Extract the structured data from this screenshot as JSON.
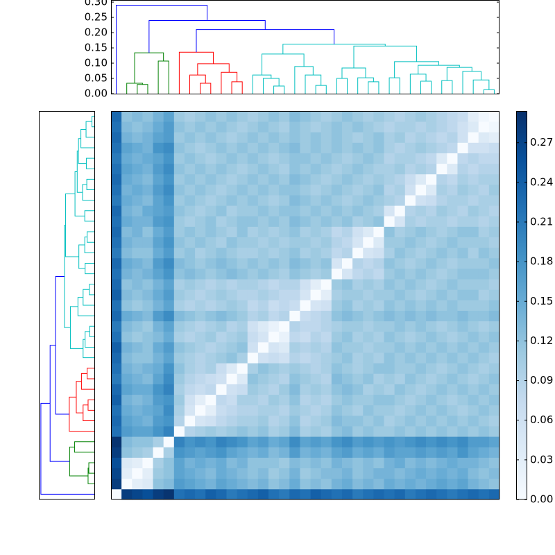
{
  "chart_data": {
    "type": "clustermap",
    "matrix": [
      [
        0
      ],
      [
        0.28,
        0
      ],
      [
        0.27,
        0.03,
        0
      ],
      [
        0.26,
        0.04,
        0.03,
        0
      ],
      [
        0.28,
        0.12,
        0.11,
        0.1,
        0
      ],
      [
        0.29,
        0.13,
        0.12,
        0.12,
        0.1,
        0
      ],
      [
        0.22,
        0.17,
        0.16,
        0.16,
        0.18,
        0.2,
        0
      ],
      [
        0.23,
        0.16,
        0.15,
        0.14,
        0.17,
        0.18,
        0.09,
        0
      ],
      [
        0.22,
        0.15,
        0.14,
        0.15,
        0.16,
        0.19,
        0.1,
        0.05,
        0
      ],
      [
        0.24,
        0.14,
        0.13,
        0.14,
        0.17,
        0.18,
        0.11,
        0.06,
        0.03,
        0
      ],
      [
        0.23,
        0.16,
        0.15,
        0.15,
        0.18,
        0.2,
        0.1,
        0.08,
        0.07,
        0.08,
        0
      ],
      [
        0.21,
        0.15,
        0.14,
        0.13,
        0.16,
        0.19,
        0.11,
        0.09,
        0.08,
        0.07,
        0.06,
        0
      ],
      [
        0.22,
        0.14,
        0.13,
        0.14,
        0.15,
        0.18,
        0.12,
        0.1,
        0.09,
        0.1,
        0.07,
        0.04,
        0
      ],
      [
        0.23,
        0.13,
        0.12,
        0.12,
        0.14,
        0.16,
        0.11,
        0.1,
        0.09,
        0.1,
        0.11,
        0.12,
        0.1,
        0
      ],
      [
        0.24,
        0.14,
        0.13,
        0.12,
        0.15,
        0.17,
        0.12,
        0.11,
        0.1,
        0.09,
        0.1,
        0.11,
        0.12,
        0.06,
        0
      ],
      [
        0.22,
        0.12,
        0.11,
        0.12,
        0.13,
        0.15,
        0.1,
        0.09,
        0.1,
        0.11,
        0.09,
        0.1,
        0.11,
        0.07,
        0.05,
        0
      ],
      [
        0.21,
        0.13,
        0.12,
        0.11,
        0.14,
        0.16,
        0.11,
        0.1,
        0.09,
        0.1,
        0.11,
        0.09,
        0.1,
        0.06,
        0.04,
        0.02,
        0
      ],
      [
        0.23,
        0.15,
        0.14,
        0.13,
        0.17,
        0.19,
        0.13,
        0.12,
        0.11,
        0.12,
        0.13,
        0.12,
        0.11,
        0.09,
        0.1,
        0.08,
        0.09,
        0
      ],
      [
        0.22,
        0.12,
        0.11,
        0.12,
        0.14,
        0.16,
        0.1,
        0.09,
        0.1,
        0.09,
        0.1,
        0.11,
        0.1,
        0.08,
        0.09,
        0.07,
        0.08,
        0.07,
        0
      ],
      [
        0.24,
        0.13,
        0.12,
        0.13,
        0.15,
        0.17,
        0.11,
        0.1,
        0.09,
        0.1,
        0.11,
        0.1,
        0.09,
        0.09,
        0.1,
        0.09,
        0.08,
        0.08,
        0.05,
        0
      ],
      [
        0.23,
        0.12,
        0.13,
        0.12,
        0.14,
        0.16,
        0.1,
        0.11,
        0.1,
        0.09,
        0.1,
        0.09,
        0.1,
        0.1,
        0.09,
        0.08,
        0.09,
        0.09,
        0.06,
        0.03,
        0
      ],
      [
        0.22,
        0.14,
        0.13,
        0.14,
        0.16,
        0.18,
        0.12,
        0.13,
        0.12,
        0.11,
        0.12,
        0.13,
        0.12,
        0.11,
        0.12,
        0.11,
        0.1,
        0.12,
        0.11,
        0.1,
        0.11,
        0
      ],
      [
        0.23,
        0.15,
        0.14,
        0.13,
        0.17,
        0.19,
        0.13,
        0.12,
        0.11,
        0.12,
        0.13,
        0.12,
        0.11,
        0.12,
        0.11,
        0.12,
        0.11,
        0.13,
        0.12,
        0.11,
        0.12,
        0.05,
        0
      ],
      [
        0.21,
        0.13,
        0.12,
        0.12,
        0.15,
        0.17,
        0.11,
        0.12,
        0.1,
        0.11,
        0.12,
        0.11,
        0.1,
        0.1,
        0.11,
        0.1,
        0.11,
        0.12,
        0.1,
        0.11,
        0.1,
        0.08,
        0.09,
        0
      ],
      [
        0.22,
        0.14,
        0.13,
        0.13,
        0.16,
        0.18,
        0.12,
        0.11,
        0.12,
        0.11,
        0.1,
        0.12,
        0.11,
        0.11,
        0.1,
        0.11,
        0.1,
        0.11,
        0.11,
        0.1,
        0.11,
        0.09,
        0.08,
        0.05,
        0
      ],
      [
        0.23,
        0.13,
        0.14,
        0.12,
        0.15,
        0.17,
        0.11,
        0.12,
        0.11,
        0.12,
        0.11,
        0.1,
        0.12,
        0.1,
        0.11,
        0.1,
        0.11,
        0.12,
        0.1,
        0.11,
        0.1,
        0.08,
        0.09,
        0.06,
        0.04,
        0
      ],
      [
        0.22,
        0.15,
        0.14,
        0.14,
        0.17,
        0.18,
        0.11,
        0.1,
        0.11,
        0.12,
        0.1,
        0.11,
        0.12,
        0.12,
        0.11,
        0.12,
        0.11,
        0.13,
        0.12,
        0.11,
        0.12,
        0.11,
        0.12,
        0.1,
        0.11,
        0.12,
        0
      ],
      [
        0.23,
        0.14,
        0.13,
        0.15,
        0.16,
        0.17,
        0.12,
        0.11,
        0.1,
        0.11,
        0.12,
        0.1,
        0.11,
        0.11,
        0.12,
        0.11,
        0.12,
        0.12,
        0.11,
        0.12,
        0.11,
        0.12,
        0.11,
        0.12,
        0.11,
        0.1,
        0.05,
        0
      ],
      [
        0.21,
        0.15,
        0.14,
        0.13,
        0.16,
        0.18,
        0.11,
        0.12,
        0.11,
        0.1,
        0.11,
        0.12,
        0.11,
        0.12,
        0.11,
        0.1,
        0.11,
        0.13,
        0.12,
        0.11,
        0.12,
        0.11,
        0.1,
        0.11,
        0.12,
        0.11,
        0.1,
        0.09,
        0
      ],
      [
        0.22,
        0.14,
        0.15,
        0.14,
        0.17,
        0.19,
        0.12,
        0.11,
        0.12,
        0.11,
        0.1,
        0.11,
        0.12,
        0.11,
        0.12,
        0.11,
        0.12,
        0.12,
        0.11,
        0.1,
        0.11,
        0.12,
        0.11,
        0.1,
        0.11,
        0.12,
        0.09,
        0.1,
        0.06,
        0
      ],
      [
        0.23,
        0.15,
        0.14,
        0.13,
        0.16,
        0.18,
        0.11,
        0.12,
        0.11,
        0.12,
        0.11,
        0.1,
        0.11,
        0.12,
        0.11,
        0.12,
        0.11,
        0.13,
        0.12,
        0.11,
        0.1,
        0.11,
        0.12,
        0.11,
        0.1,
        0.11,
        0.1,
        0.09,
        0.07,
        0.04,
        0
      ],
      [
        0.22,
        0.16,
        0.15,
        0.14,
        0.17,
        0.19,
        0.12,
        0.11,
        0.12,
        0.11,
        0.12,
        0.11,
        0.1,
        0.11,
        0.12,
        0.11,
        0.1,
        0.12,
        0.11,
        0.12,
        0.11,
        0.1,
        0.11,
        0.12,
        0.11,
        0.1,
        0.1,
        0.11,
        0.09,
        0.1,
        0.09,
        0
      ],
      [
        0.21,
        0.15,
        0.14,
        0.15,
        0.16,
        0.18,
        0.11,
        0.12,
        0.11,
        0.1,
        0.11,
        0.12,
        0.11,
        0.12,
        0.11,
        0.1,
        0.11,
        0.12,
        0.12,
        0.11,
        0.12,
        0.11,
        0.1,
        0.11,
        0.12,
        0.11,
        0.09,
        0.1,
        0.1,
        0.09,
        0.08,
        0.04,
        0
      ],
      [
        0.22,
        0.16,
        0.15,
        0.14,
        0.18,
        0.19,
        0.12,
        0.11,
        0.1,
        0.11,
        0.12,
        0.11,
        0.12,
        0.11,
        0.12,
        0.11,
        0.12,
        0.13,
        0.11,
        0.12,
        0.11,
        0.12,
        0.11,
        0.12,
        0.11,
        0.12,
        0.1,
        0.09,
        0.1,
        0.11,
        0.1,
        0.09,
        0.08,
        0
      ],
      [
        0.23,
        0.14,
        0.13,
        0.14,
        0.16,
        0.17,
        0.11,
        0.12,
        0.11,
        0.12,
        0.11,
        0.1,
        0.11,
        0.12,
        0.11,
        0.12,
        0.11,
        0.12,
        0.11,
        0.12,
        0.11,
        0.12,
        0.11,
        0.1,
        0.11,
        0.12,
        0.1,
        0.11,
        0.09,
        0.1,
        0.09,
        0.08,
        0.09,
        0.06,
        0
      ],
      [
        0.22,
        0.13,
        0.12,
        0.13,
        0.15,
        0.17,
        0.12,
        0.11,
        0.12,
        0.11,
        0.12,
        0.11,
        0.1,
        0.11,
        0.12,
        0.11,
        0.1,
        0.12,
        0.11,
        0.1,
        0.11,
        0.12,
        0.11,
        0.12,
        0.11,
        0.1,
        0.09,
        0.1,
        0.1,
        0.09,
        0.1,
        0.09,
        0.08,
        0.06,
        0.04,
        0
      ],
      [
        0.23,
        0.12,
        0.13,
        0.12,
        0.14,
        0.16,
        0.11,
        0.1,
        0.11,
        0.12,
        0.11,
        0.12,
        0.11,
        0.1,
        0.11,
        0.12,
        0.11,
        0.13,
        0.12,
        0.11,
        0.1,
        0.11,
        0.12,
        0.11,
        0.1,
        0.11,
        0.1,
        0.09,
        0.1,
        0.11,
        0.1,
        0.09,
        0.08,
        0.07,
        0.03,
        0.01,
        0
      ]
    ],
    "vlim": [
      0,
      0.294
    ],
    "colormap": [
      "#f7fbff",
      "#deebf7",
      "#c6dbef",
      "#9ecae1",
      "#6baed6",
      "#4292c6",
      "#2171b5",
      "#08519c",
      "#08306b"
    ],
    "colorbar_ticks": [
      {
        "value": 0,
        "label": "0.00"
      },
      {
        "value": 0.03,
        "label": "0.03"
      },
      {
        "value": 0.06,
        "label": "0.06"
      },
      {
        "value": 0.09,
        "label": "0.09"
      },
      {
        "value": 0.12,
        "label": "0.12"
      },
      {
        "value": 0.15,
        "label": "0.15"
      },
      {
        "value": 0.18,
        "label": "0.18"
      },
      {
        "value": 0.21,
        "label": "0.21"
      },
      {
        "value": 0.24,
        "label": "0.24"
      },
      {
        "value": 0.27,
        "label": "0.27"
      }
    ],
    "dendrogram_ylim": [
      0,
      0.307
    ],
    "dendrogram_yticks": [
      {
        "value": 0,
        "label": "0.00"
      },
      {
        "value": 0.05,
        "label": "0.05"
      },
      {
        "value": 0.1,
        "label": "0.10"
      },
      {
        "value": 0.15,
        "label": "0.15"
      },
      {
        "value": 0.2,
        "label": "0.20"
      },
      {
        "value": 0.25,
        "label": "0.25"
      },
      {
        "value": 0.3,
        "label": "0.30"
      }
    ],
    "left_dendrogram_xlim": [
      0.301,
      0
    ],
    "links": [
      {
        "pair": [
          2,
          3
        ],
        "height": 0.03,
        "color": "#008000"
      },
      {
        "pair": [
          1,
          37
        ],
        "height": 0.034,
        "color": "#008000"
      },
      {
        "pair": [
          4,
          5
        ],
        "height": 0.107,
        "color": "#008000"
      },
      {
        "pair": [
          38,
          39
        ],
        "height": 0.134,
        "color": "#008000"
      },
      {
        "pair": [
          8,
          9
        ],
        "height": 0.034,
        "color": "#ff0000"
      },
      {
        "pair": [
          7,
          41
        ],
        "height": 0.061,
        "color": "#ff0000"
      },
      {
        "pair": [
          11,
          12
        ],
        "height": 0.039,
        "color": "#ff0000"
      },
      {
        "pair": [
          10,
          43
        ],
        "height": 0.07,
        "color": "#ff0000"
      },
      {
        "pair": [
          42,
          44
        ],
        "height": 0.098,
        "color": "#ff0000"
      },
      {
        "pair": [
          6,
          45
        ],
        "height": 0.136,
        "color": "#ff0000"
      },
      {
        "pair": [
          15,
          16
        ],
        "height": 0.025,
        "color": "#00bfbf"
      },
      {
        "pair": [
          14,
          47
        ],
        "height": 0.05,
        "color": "#00bfbf"
      },
      {
        "pair": [
          13,
          48
        ],
        "height": 0.061,
        "color": "#00bfbf"
      },
      {
        "pair": [
          19,
          20
        ],
        "height": 0.027,
        "color": "#00bfbf"
      },
      {
        "pair": [
          18,
          50
        ],
        "height": 0.061,
        "color": "#00bfbf"
      },
      {
        "pair": [
          17,
          51
        ],
        "height": 0.089,
        "color": "#00bfbf"
      },
      {
        "pair": [
          49,
          52
        ],
        "height": 0.13,
        "color": "#00bfbf"
      },
      {
        "pair": [
          24,
          25
        ],
        "height": 0.039,
        "color": "#00bfbf"
      },
      {
        "pair": [
          23,
          54
        ],
        "height": 0.052,
        "color": "#00bfbf"
      },
      {
        "pair": [
          21,
          22
        ],
        "height": 0.05,
        "color": "#00bfbf"
      },
      {
        "pair": [
          56,
          55
        ],
        "height": 0.084,
        "color": "#00bfbf"
      },
      {
        "pair": [
          26,
          27
        ],
        "height": 0.052,
        "color": "#00bfbf"
      },
      {
        "pair": [
          29,
          30
        ],
        "height": 0.041,
        "color": "#00bfbf"
      },
      {
        "pair": [
          28,
          59
        ],
        "height": 0.064,
        "color": "#00bfbf"
      },
      {
        "pair": [
          31,
          32
        ],
        "height": 0.043,
        "color": "#00bfbf"
      },
      {
        "pair": [
          35,
          36
        ],
        "height": 0.013,
        "color": "#00bfbf"
      },
      {
        "pair": [
          34,
          62
        ],
        "height": 0.045,
        "color": "#00bfbf"
      },
      {
        "pair": [
          33,
          63
        ],
        "height": 0.073,
        "color": "#00bfbf"
      },
      {
        "pair": [
          61,
          64
        ],
        "height": 0.086,
        "color": "#00bfbf"
      },
      {
        "pair": [
          60,
          65
        ],
        "height": 0.093,
        "color": "#00bfbf"
      },
      {
        "pair": [
          58,
          66
        ],
        "height": 0.105,
        "color": "#00bfbf"
      },
      {
        "pair": [
          57,
          67
        ],
        "height": 0.156,
        "color": "#00bfbf"
      },
      {
        "pair": [
          53,
          68
        ],
        "height": 0.162,
        "color": "#00bfbf"
      },
      {
        "pair": [
          46,
          69
        ],
        "height": 0.21,
        "color": "#0000ff"
      },
      {
        "pair": [
          40,
          70
        ],
        "height": 0.24,
        "color": "#0000ff"
      },
      {
        "pair": [
          0,
          71
        ],
        "height": 0.29,
        "color": "#0000ff"
      }
    ]
  }
}
